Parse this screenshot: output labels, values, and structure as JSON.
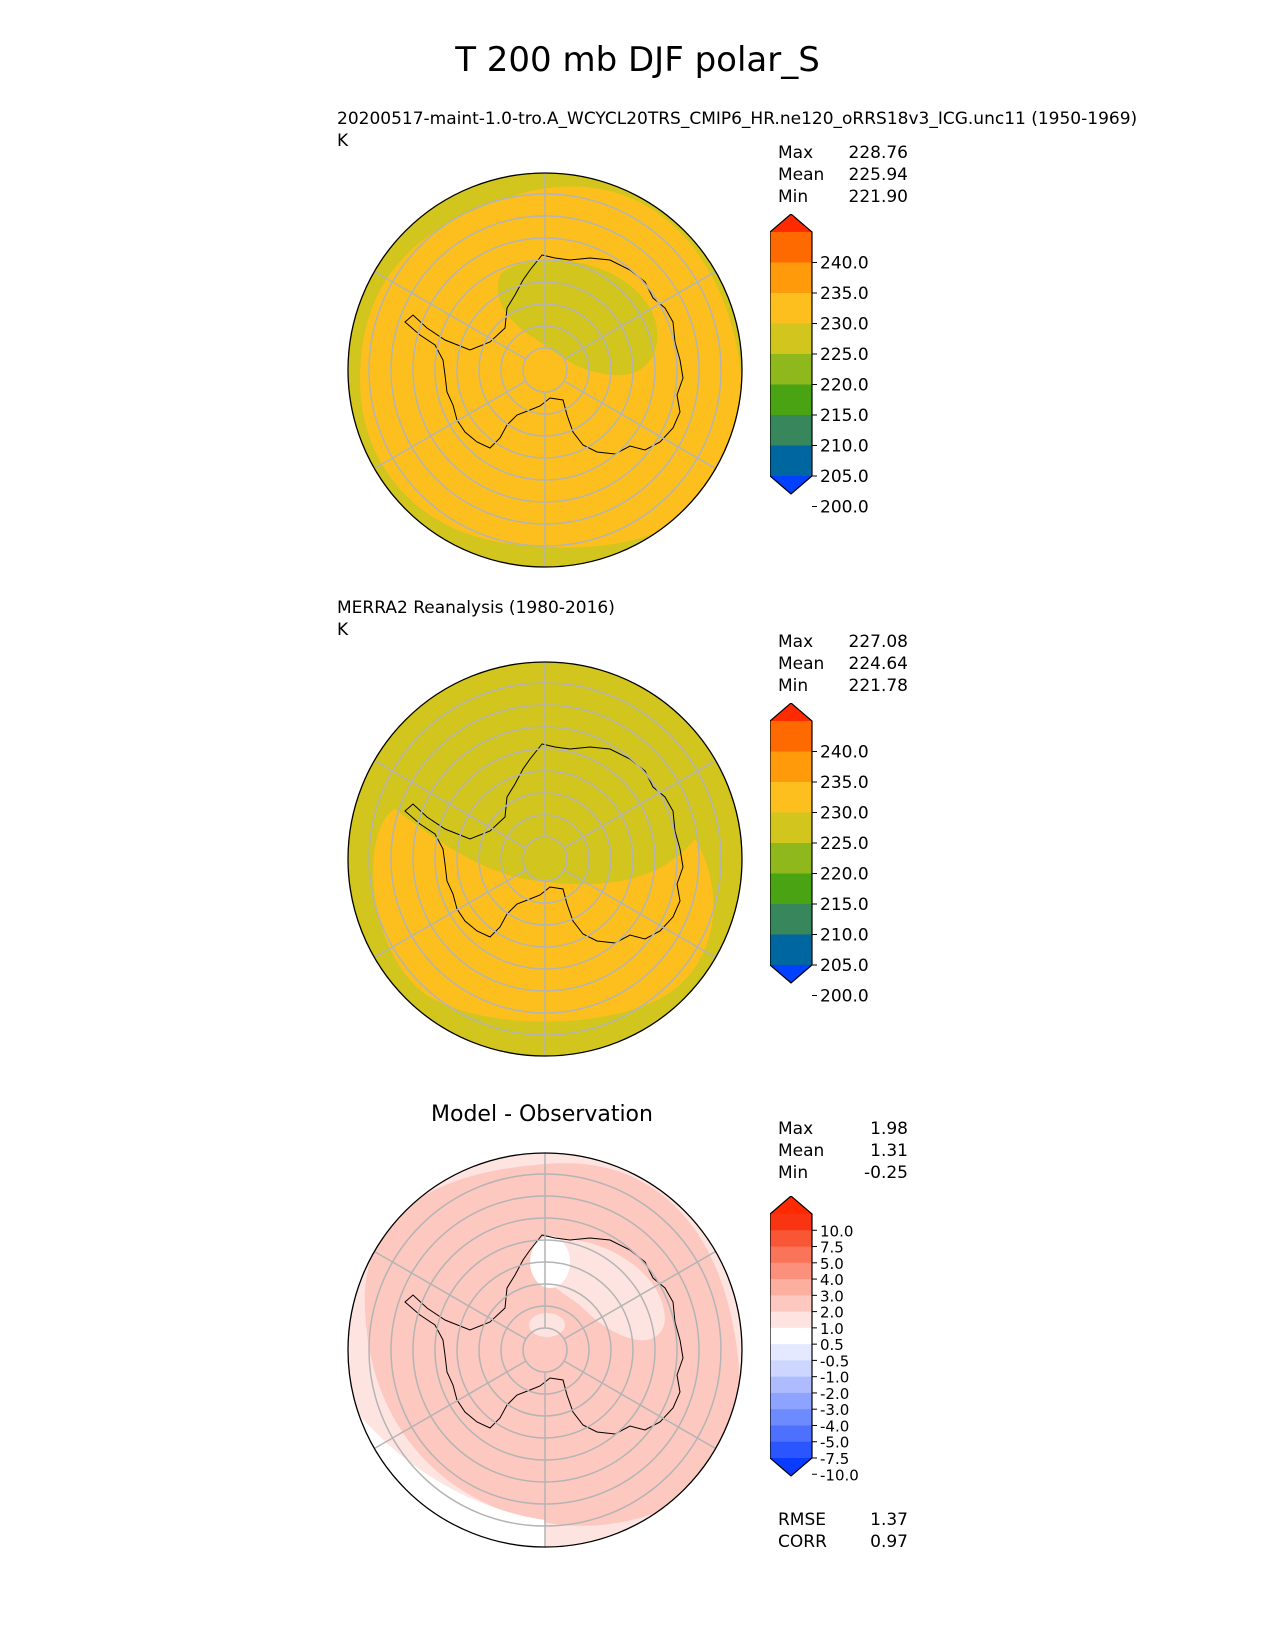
{
  "title": "T 200 mb DJF polar_S",
  "panels": [
    {
      "title": "20200517-maint-1.0-tro.A_WCYCL20TRS_CMIP6_HR.ne120_oRRS18v3_ICG.unc11 (1950-1969)",
      "units": "K",
      "stats": [
        {
          "label": "Max",
          "value": "228.76"
        },
        {
          "label": "Mean",
          "value": "225.94"
        },
        {
          "label": "Min",
          "value": "221.90"
        }
      ]
    },
    {
      "title": "MERRA2 Reanalysis (1980-2016)",
      "units": "K",
      "stats": [
        {
          "label": "Max",
          "value": "227.08"
        },
        {
          "label": "Mean",
          "value": "224.64"
        },
        {
          "label": "Min",
          "value": "221.78"
        }
      ]
    },
    {
      "title": "Model - Observation",
      "stats": [
        {
          "label": "Max",
          "value": "1.98"
        },
        {
          "label": "Mean",
          "value": "1.31"
        },
        {
          "label": "Min",
          "value": "-0.25"
        }
      ],
      "metrics": [
        {
          "label": "RMSE",
          "value": "1.37"
        },
        {
          "label": "CORR",
          "value": "0.97"
        }
      ]
    }
  ],
  "chart_data": [
    {
      "type": "heatmap",
      "projection": "south polar stereographic",
      "title": "20200517-maint-1.0-tro.A_WCYCL20TRS_CMIP6_HR.ne120_oRRS18v3_ICG.unc11 (1950-1969)",
      "units": "K",
      "colorbar": {
        "levels": [
          200.0,
          205.0,
          210.0,
          215.0,
          220.0,
          225.0,
          230.0,
          235.0,
          240.0
        ],
        "tick_labels": [
          "240.0",
          "235.0",
          "230.0",
          "225.0",
          "220.0",
          "215.0",
          "210.0",
          "205.0",
          "200.0"
        ],
        "colors": [
          "#0040ff",
          "#0066a0",
          "#38865c",
          "#4aa312",
          "#8eb81c",
          "#d1c51e",
          "#fcbf1e",
          "#ff9a0a",
          "#ff6a00",
          "#ff2a00"
        ],
        "extend": "both"
      },
      "field_summary": {
        "dominant_range": "225.0-230.0",
        "secondary_range": "220.0-225.0"
      }
    },
    {
      "type": "heatmap",
      "projection": "south polar stereographic",
      "title": "MERRA2 Reanalysis (1980-2016)",
      "units": "K",
      "colorbar": {
        "levels": [
          200.0,
          205.0,
          210.0,
          215.0,
          220.0,
          225.0,
          230.0,
          235.0,
          240.0
        ],
        "tick_labels": [
          "240.0",
          "235.0",
          "230.0",
          "225.0",
          "220.0",
          "215.0",
          "210.0",
          "205.0",
          "200.0"
        ],
        "colors": [
          "#0040ff",
          "#0066a0",
          "#38865c",
          "#4aa312",
          "#8eb81c",
          "#d1c51e",
          "#fcbf1e",
          "#ff9a0a",
          "#ff6a00",
          "#ff2a00"
        ],
        "extend": "both"
      },
      "field_summary": {
        "dominant_range": "220.0-225.0",
        "secondary_range": "225.0-230.0"
      }
    },
    {
      "type": "heatmap",
      "projection": "south polar stereographic",
      "title": "Model - Observation",
      "colorbar": {
        "levels": [
          -10.0,
          -7.5,
          -5.0,
          -4.0,
          -3.0,
          -2.0,
          -1.0,
          -0.5,
          0.5,
          1.0,
          2.0,
          3.0,
          4.0,
          5.0,
          7.5,
          10.0
        ],
        "tick_labels": [
          "10.0",
          "7.5",
          "5.0",
          "4.0",
          "3.0",
          "2.0",
          "1.0",
          "0.5",
          "-0.5",
          "-1.0",
          "-2.0",
          "-3.0",
          "-4.0",
          "-5.0",
          "-7.5",
          "-10.0"
        ],
        "colors": [
          "#0a3cff",
          "#2a55ff",
          "#4d70ff",
          "#6e8aff",
          "#8ea3ff",
          "#aebcff",
          "#ccd6ff",
          "#e4e9ff",
          "#ffffff",
          "#fde4e0",
          "#fdc8c0",
          "#fcae9f",
          "#fb907c",
          "#fa7459",
          "#f95636",
          "#f83412",
          "#ff2a00"
        ],
        "extend": "both"
      },
      "field_summary": {
        "dominant_range": "1.0-2.0",
        "secondary_range": "0.5-1.0"
      }
    }
  ]
}
